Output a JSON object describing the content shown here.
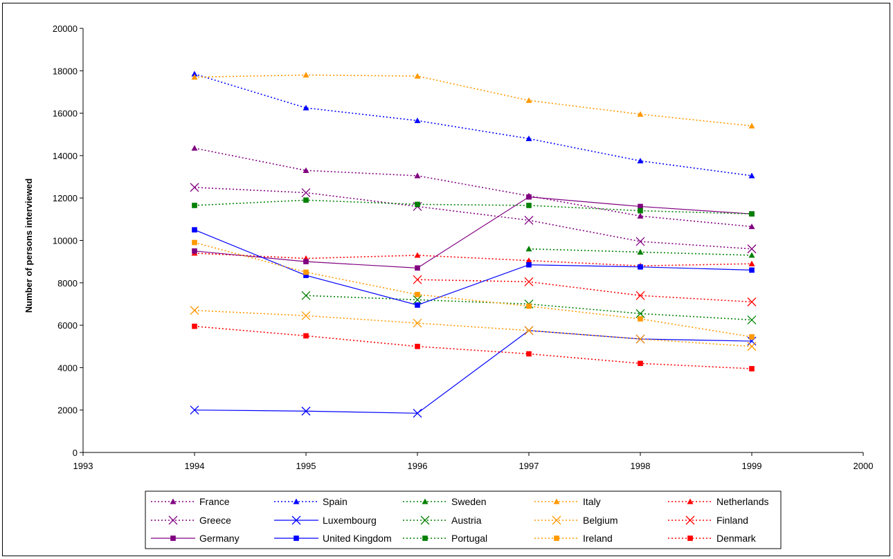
{
  "chart_data": {
    "type": "line",
    "title": "",
    "xlabel": "",
    "ylabel": "Number of persons interviewed",
    "xlim": [
      1993,
      2000
    ],
    "ylim": [
      0,
      20000
    ],
    "x_ticks": [
      "1993",
      "1994",
      "1995",
      "1996",
      "1997",
      "1998",
      "1999",
      "2000"
    ],
    "y_ticks": [
      "0",
      "2000",
      "4000",
      "6000",
      "8000",
      "10000",
      "12000",
      "14000",
      "16000",
      "18000",
      "20000"
    ],
    "grid": false,
    "legend_position": "bottom",
    "series": [
      {
        "name": "France",
        "color": "#800080",
        "marker": "triangle",
        "dash": "dotted",
        "points": [
          [
            1994,
            14350
          ],
          [
            1995,
            13300
          ],
          [
            1996,
            13050
          ],
          [
            1997,
            12100
          ],
          [
            1998,
            11150
          ],
          [
            1999,
            10650
          ]
        ]
      },
      {
        "name": "Spain",
        "color": "#0000FF",
        "marker": "triangle",
        "dash": "dotted",
        "points": [
          [
            1994,
            17850
          ],
          [
            1995,
            16250
          ],
          [
            1996,
            15650
          ],
          [
            1997,
            14800
          ],
          [
            1998,
            13750
          ],
          [
            1999,
            13050
          ]
        ]
      },
      {
        "name": "Sweden",
        "color": "#008000",
        "marker": "triangle",
        "dash": "dotted",
        "points": [
          [
            1997,
            9600
          ],
          [
            1998,
            9450
          ],
          [
            1999,
            9300
          ]
        ]
      },
      {
        "name": "Italy",
        "color": "#FF9900",
        "marker": "triangle",
        "dash": "dotted",
        "points": [
          [
            1994,
            17700
          ],
          [
            1995,
            17800
          ],
          [
            1996,
            17750
          ],
          [
            1997,
            16600
          ],
          [
            1998,
            15950
          ],
          [
            1999,
            15400
          ]
        ]
      },
      {
        "name": "Netherlands",
        "color": "#FF0000",
        "marker": "triangle",
        "dash": "dotted",
        "points": [
          [
            1994,
            9400
          ],
          [
            1995,
            9150
          ],
          [
            1996,
            9300
          ],
          [
            1997,
            9050
          ],
          [
            1998,
            8800
          ],
          [
            1999,
            8900
          ]
        ]
      },
      {
        "name": "Greece",
        "color": "#800080",
        "marker": "x",
        "dash": "dotted",
        "points": [
          [
            1994,
            12500
          ],
          [
            1995,
            12250
          ],
          [
            1996,
            11600
          ],
          [
            1997,
            10950
          ],
          [
            1998,
            9950
          ],
          [
            1999,
            9600
          ]
        ]
      },
      {
        "name": "Luxembourg",
        "color": "#0000FF",
        "marker": "x",
        "dash": "solid",
        "points": [
          [
            1994,
            2000
          ],
          [
            1995,
            1950
          ],
          [
            1996,
            1850
          ],
          [
            1997,
            5750
          ],
          [
            1998,
            5350
          ],
          [
            1999,
            5250
          ]
        ]
      },
      {
        "name": "Austria",
        "color": "#008000",
        "marker": "x",
        "dash": "dotted",
        "points": [
          [
            1995,
            7400
          ],
          [
            1996,
            7200
          ],
          [
            1997,
            7000
          ],
          [
            1998,
            6550
          ],
          [
            1999,
            6250
          ]
        ]
      },
      {
        "name": "Belgium",
        "color": "#FF9900",
        "marker": "x",
        "dash": "dotted",
        "points": [
          [
            1994,
            6700
          ],
          [
            1995,
            6450
          ],
          [
            1996,
            6100
          ],
          [
            1997,
            5750
          ],
          [
            1998,
            5350
          ],
          [
            1999,
            5000
          ]
        ]
      },
      {
        "name": "Finland",
        "color": "#FF0000",
        "marker": "x",
        "dash": "dotted",
        "points": [
          [
            1996,
            8150
          ],
          [
            1997,
            8050
          ],
          [
            1998,
            7400
          ],
          [
            1999,
            7100
          ]
        ]
      },
      {
        "name": "Germany",
        "color": "#800080",
        "marker": "square",
        "dash": "solid",
        "points": [
          [
            1994,
            9500
          ],
          [
            1995,
            9000
          ],
          [
            1996,
            8700
          ],
          [
            1997,
            12050
          ],
          [
            1998,
            11600
          ],
          [
            1999,
            11250
          ]
        ]
      },
      {
        "name": "United Kingdom",
        "color": "#0000FF",
        "marker": "square",
        "dash": "solid",
        "points": [
          [
            1994,
            10500
          ],
          [
            1995,
            8350
          ],
          [
            1996,
            6950
          ],
          [
            1997,
            8850
          ],
          [
            1998,
            8750
          ],
          [
            1999,
            8600
          ]
        ]
      },
      {
        "name": "Portugal",
        "color": "#008000",
        "marker": "square",
        "dash": "dotted",
        "points": [
          [
            1994,
            11650
          ],
          [
            1995,
            11900
          ],
          [
            1996,
            11700
          ],
          [
            1997,
            11650
          ],
          [
            1998,
            11400
          ],
          [
            1999,
            11250
          ]
        ]
      },
      {
        "name": "Ireland",
        "color": "#FF9900",
        "marker": "square",
        "dash": "dotted",
        "points": [
          [
            1994,
            9900
          ],
          [
            1995,
            8500
          ],
          [
            1996,
            7450
          ],
          [
            1997,
            6900
          ],
          [
            1998,
            6300
          ],
          [
            1999,
            5450
          ]
        ]
      },
      {
        "name": "Denmark",
        "color": "#FF0000",
        "marker": "square",
        "dash": "dotted",
        "points": [
          [
            1994,
            5950
          ],
          [
            1995,
            5500
          ],
          [
            1996,
            5000
          ],
          [
            1997,
            4650
          ],
          [
            1998,
            4200
          ],
          [
            1999,
            3950
          ]
        ]
      }
    ]
  }
}
